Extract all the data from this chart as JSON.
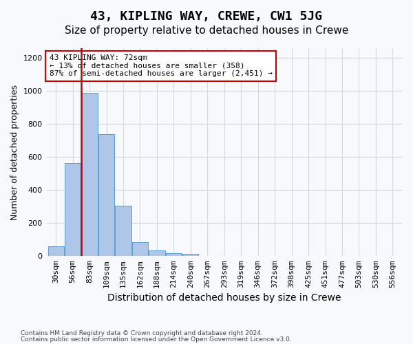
{
  "title": "43, KIPLING WAY, CREWE, CW1 5JG",
  "subtitle": "Size of property relative to detached houses in Crewe",
  "xlabel": "Distribution of detached houses by size in Crewe",
  "ylabel": "Number of detached properties",
  "footer_line1": "Contains HM Land Registry data © Crown copyright and database right 2024.",
  "footer_line2": "Contains public sector information licensed under the Open Government Licence v3.0.",
  "bin_labels": [
    "30sqm",
    "56sqm",
    "83sqm",
    "109sqm",
    "135sqm",
    "162sqm",
    "188sqm",
    "214sqm",
    "240sqm",
    "267sqm",
    "293sqm",
    "319sqm",
    "346sqm",
    "372sqm",
    "398sqm",
    "425sqm",
    "451sqm",
    "477sqm",
    "503sqm",
    "530sqm",
    "556sqm"
  ],
  "bar_values": [
    60,
    565,
    990,
    740,
    305,
    85,
    35,
    20,
    12,
    0,
    0,
    0,
    0,
    0,
    0,
    0,
    0,
    0,
    0,
    0,
    0
  ],
  "bar_color": "#aec6e8",
  "bar_edge_color": "#5a9fd4",
  "grid_color": "#d0d8e8",
  "vline_x": 1.5,
  "vline_color": "#cc0000",
  "annotation_text": "43 KIPLING WAY: 72sqm\n← 13% of detached houses are smaller (358)\n87% of semi-detached houses are larger (2,451) →",
  "annotation_box_color": "#ffffff",
  "annotation_box_edge": "#cc0000",
  "ylim": [
    0,
    1260
  ],
  "yticks": [
    0,
    200,
    400,
    600,
    800,
    1000,
    1200
  ],
  "title_fontsize": 13,
  "subtitle_fontsize": 11,
  "xlabel_fontsize": 10,
  "ylabel_fontsize": 9,
  "tick_fontsize": 8,
  "background_color": "#f7f9fc"
}
